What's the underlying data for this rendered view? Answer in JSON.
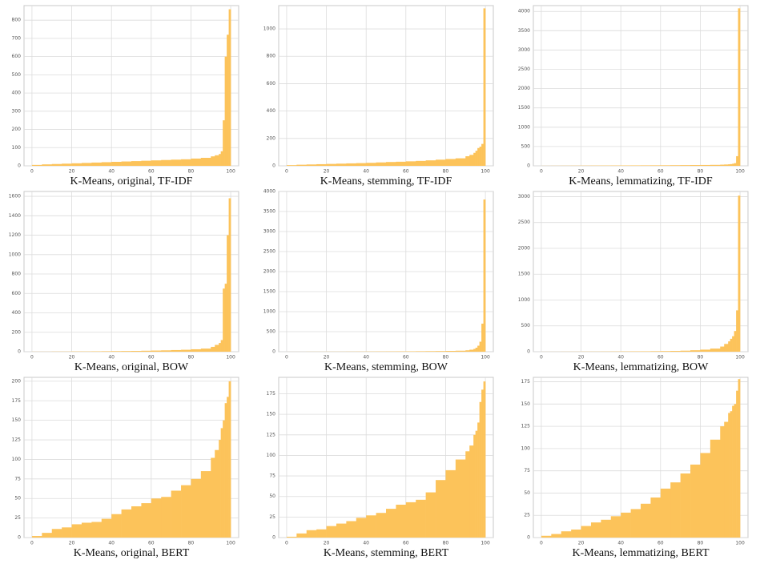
{
  "chart_data": [
    {
      "type": "histogram",
      "title": "K-Means, original, TF-IDF",
      "color": "#fcc35a",
      "grid": true,
      "bins": [
        0,
        5,
        10,
        15,
        20,
        25,
        30,
        35,
        40,
        45,
        50,
        55,
        60,
        65,
        70,
        75,
        80,
        85,
        90,
        92,
        94,
        95,
        96,
        97,
        98,
        99,
        100
      ],
      "values": [
        5,
        8,
        10,
        12,
        14,
        16,
        18,
        20,
        22,
        24,
        26,
        28,
        30,
        32,
        34,
        36,
        40,
        44,
        52,
        58,
        65,
        80,
        250,
        600,
        720,
        860
      ],
      "xlim": [
        -4,
        104
      ],
      "ylim": [
        0,
        880
      ],
      "xticks": [
        0,
        20,
        40,
        60,
        80,
        100
      ],
      "yticks": [
        0,
        100,
        200,
        300,
        400,
        500,
        600,
        700,
        800
      ]
    },
    {
      "type": "histogram",
      "title": "K-Means, stemming, TF-IDF",
      "color": "#fcc35a",
      "grid": true,
      "bins": [
        0,
        5,
        10,
        15,
        20,
        25,
        30,
        35,
        40,
        45,
        50,
        55,
        60,
        65,
        70,
        75,
        80,
        85,
        90,
        92,
        94,
        95,
        96,
        97,
        98,
        99,
        100
      ],
      "values": [
        5,
        8,
        10,
        12,
        14,
        16,
        18,
        20,
        22,
        25,
        28,
        30,
        33,
        36,
        40,
        45,
        50,
        55,
        70,
        80,
        95,
        110,
        130,
        140,
        160,
        1150
      ],
      "xlim": [
        -4,
        104
      ],
      "ylim": [
        0,
        1170
      ],
      "xticks": [
        0,
        20,
        40,
        60,
        80,
        100
      ],
      "yticks": [
        0,
        200,
        400,
        600,
        800,
        1000
      ]
    },
    {
      "type": "histogram",
      "title": "K-Means, lemmatizing, TF-IDF",
      "color": "#fcc35a",
      "grid": true,
      "bins": [
        0,
        5,
        10,
        15,
        20,
        25,
        30,
        35,
        40,
        45,
        50,
        55,
        60,
        65,
        70,
        75,
        80,
        85,
        90,
        92,
        94,
        95,
        96,
        97,
        98,
        99,
        100
      ],
      "values": [
        2,
        3,
        4,
        5,
        6,
        7,
        8,
        9,
        10,
        11,
        12,
        13,
        14,
        16,
        18,
        20,
        22,
        25,
        30,
        35,
        40,
        45,
        55,
        70,
        250,
        4080
      ],
      "xlim": [
        -4,
        104
      ],
      "ylim": [
        0,
        4150
      ],
      "xticks": [
        0,
        20,
        40,
        60,
        80,
        100
      ],
      "yticks": [
        0,
        500,
        1000,
        1500,
        2000,
        2500,
        3000,
        3500,
        4000
      ]
    },
    {
      "type": "histogram",
      "title": "K-Means, original, BOW",
      "color": "#fcc35a",
      "grid": true,
      "bins": [
        0,
        5,
        10,
        15,
        20,
        25,
        30,
        35,
        40,
        45,
        50,
        55,
        60,
        65,
        70,
        75,
        80,
        85,
        90,
        92,
        94,
        95,
        96,
        97,
        98,
        99,
        100
      ],
      "values": [
        1,
        1,
        2,
        2,
        3,
        3,
        4,
        5,
        6,
        7,
        8,
        10,
        12,
        14,
        17,
        20,
        25,
        32,
        50,
        70,
        90,
        120,
        650,
        700,
        1200,
        1580
      ],
      "xlim": [
        -4,
        104
      ],
      "ylim": [
        0,
        1650
      ],
      "xticks": [
        0,
        20,
        40,
        60,
        80,
        100
      ],
      "yticks": [
        0,
        200,
        400,
        600,
        800,
        1000,
        1200,
        1400,
        1600
      ]
    },
    {
      "type": "histogram",
      "title": "K-Means, stemming, BOW",
      "color": "#fcc35a",
      "grid": true,
      "bins": [
        0,
        5,
        10,
        15,
        20,
        25,
        30,
        35,
        40,
        45,
        50,
        55,
        60,
        65,
        70,
        75,
        80,
        85,
        90,
        92,
        94,
        95,
        96,
        97,
        98,
        99,
        100
      ],
      "values": [
        1,
        1,
        2,
        2,
        3,
        3,
        4,
        5,
        6,
        7,
        8,
        9,
        10,
        12,
        14,
        16,
        20,
        25,
        35,
        50,
        70,
        100,
        150,
        250,
        700,
        3800
      ],
      "xlim": [
        -4,
        104
      ],
      "ylim": [
        0,
        4000
      ],
      "xticks": [
        0,
        20,
        40,
        60,
        80,
        100
      ],
      "yticks": [
        0,
        500,
        1000,
        1500,
        2000,
        2500,
        3000,
        3500,
        4000
      ]
    },
    {
      "type": "histogram",
      "title": "K-Means, lemmatizing, BOW",
      "color": "#fcc35a",
      "grid": true,
      "bins": [
        0,
        5,
        10,
        15,
        20,
        25,
        30,
        35,
        40,
        45,
        50,
        55,
        60,
        65,
        70,
        75,
        80,
        85,
        90,
        92,
        94,
        95,
        96,
        97,
        98,
        99,
        100
      ],
      "values": [
        1,
        1,
        2,
        2,
        3,
        3,
        4,
        5,
        6,
        7,
        8,
        10,
        12,
        15,
        20,
        28,
        40,
        60,
        100,
        150,
        200,
        250,
        300,
        400,
        800,
        3020
      ],
      "xlim": [
        -4,
        104
      ],
      "ylim": [
        0,
        3100
      ],
      "xticks": [
        0,
        20,
        40,
        60,
        80,
        100
      ],
      "yticks": [
        0,
        500,
        1000,
        1500,
        2000,
        2500,
        3000
      ]
    },
    {
      "type": "histogram",
      "title": "K-Means, original, BERT",
      "color": "#fcc35a",
      "grid": true,
      "bins": [
        0,
        5,
        10,
        15,
        20,
        25,
        30,
        35,
        40,
        45,
        50,
        55,
        60,
        65,
        70,
        75,
        80,
        85,
        90,
        92,
        94,
        95,
        96,
        97,
        98,
        99,
        100
      ],
      "values": [
        2,
        6,
        11,
        13,
        17,
        19,
        20,
        24,
        30,
        36,
        40,
        44,
        50,
        52,
        60,
        67,
        75,
        85,
        102,
        112,
        125,
        140,
        150,
        172,
        180,
        200
      ],
      "xlim": [
        -4,
        104
      ],
      "ylim": [
        0,
        205
      ],
      "xticks": [
        0,
        20,
        40,
        60,
        80,
        100
      ],
      "yticks": [
        0,
        25,
        50,
        75,
        100,
        125,
        150,
        175,
        200
      ]
    },
    {
      "type": "histogram",
      "title": "K-Means, stemming, BERT",
      "color": "#fcc35a",
      "grid": true,
      "bins": [
        0,
        5,
        10,
        15,
        20,
        25,
        30,
        35,
        40,
        45,
        50,
        55,
        60,
        65,
        70,
        75,
        80,
        85,
        90,
        92,
        94,
        95,
        96,
        97,
        98,
        99,
        100
      ],
      "values": [
        1,
        5,
        9,
        10,
        14,
        17,
        20,
        24,
        27,
        30,
        35,
        40,
        43,
        46,
        55,
        70,
        82,
        95,
        105,
        112,
        125,
        130,
        140,
        165,
        180,
        190
      ],
      "xlim": [
        -4,
        104
      ],
      "ylim": [
        0,
        195
      ],
      "xticks": [
        0,
        20,
        40,
        60,
        80,
        100
      ],
      "yticks": [
        0,
        25,
        50,
        75,
        100,
        125,
        150,
        175
      ]
    },
    {
      "type": "histogram",
      "title": "K-Means, lemmatizing, BERT",
      "color": "#fcc35a",
      "grid": true,
      "bins": [
        0,
        5,
        10,
        15,
        20,
        25,
        30,
        35,
        40,
        45,
        50,
        55,
        60,
        65,
        70,
        75,
        80,
        85,
        90,
        92,
        94,
        95,
        96,
        97,
        98,
        99,
        100
      ],
      "values": [
        2,
        4,
        7,
        9,
        13,
        17,
        20,
        24,
        28,
        32,
        38,
        45,
        55,
        62,
        72,
        82,
        95,
        110,
        125,
        130,
        140,
        142,
        148,
        150,
        165,
        178
      ],
      "xlim": [
        -4,
        104
      ],
      "ylim": [
        0,
        180
      ],
      "xticks": [
        0,
        20,
        40,
        60,
        80,
        100
      ],
      "yticks": [
        0,
        25,
        50,
        75,
        100,
        125,
        150,
        175
      ]
    }
  ]
}
